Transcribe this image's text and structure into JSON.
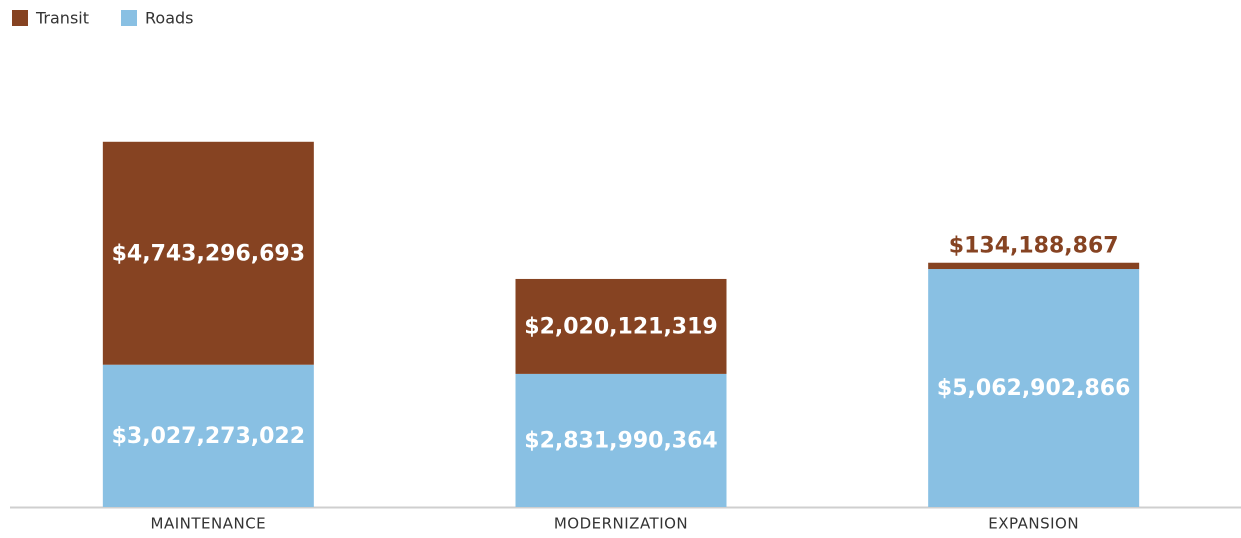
{
  "chart_data": {
    "type": "stacked-bar",
    "categories": [
      "MAINTENANCE",
      "MODERNIZATION",
      "EXPANSION"
    ],
    "series": [
      {
        "name": "Roads",
        "color": "#89c0e3",
        "values": [
          3027273022,
          2831990364,
          5062902866
        ],
        "value_labels": [
          "$3,027,273,022",
          "$2,831,990,364",
          "$5,062,902,866"
        ]
      },
      {
        "name": "Transit",
        "color": "#864322",
        "values": [
          4743296693,
          2020121319,
          134188867
        ],
        "value_labels": [
          "$4,743,296,693",
          "$2,020,121,319",
          "$134,188,867"
        ]
      }
    ],
    "ylim": [
      0,
      8000000000
    ],
    "legend": "top-left"
  }
}
